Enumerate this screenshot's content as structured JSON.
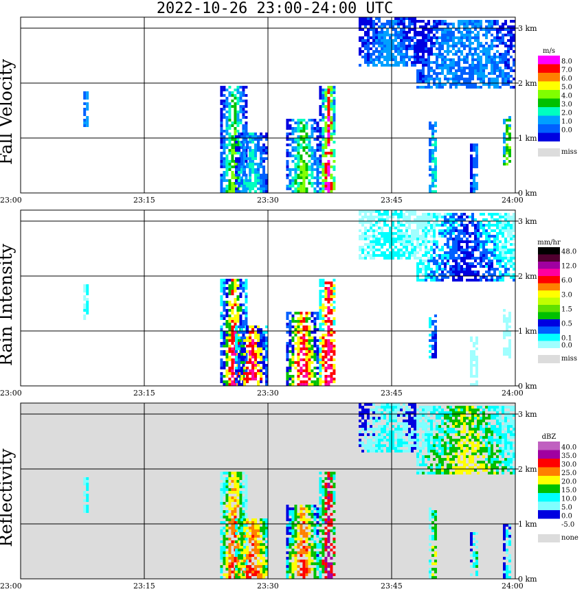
{
  "title": "2022-10-26   23:00-24:00 UTC",
  "chart_data": [
    {
      "type": "heatmap",
      "ylabel": "Fall Velocity",
      "unit": "m/s",
      "background": "#ffffff",
      "xticks": [
        "23:00",
        "23:15",
        "23:30",
        "23:45",
        "24:00"
      ],
      "yticks": [
        "0 km",
        "1 km",
        "2 km",
        "3 km"
      ],
      "xlim": [
        0,
        60
      ],
      "ylim_km": [
        0,
        3.2
      ],
      "grid": true,
      "legend": [
        {
          "label": "8.0",
          "color": "#ff00ff"
        },
        {
          "label": "7.0",
          "color": "#ff0000"
        },
        {
          "label": "6.0",
          "color": "#ff8000"
        },
        {
          "label": "5.0",
          "color": "#ffff00"
        },
        {
          "label": "4.0",
          "color": "#80ff00"
        },
        {
          "label": "3.0",
          "color": "#00c000"
        },
        {
          "label": "2.0",
          "color": "#00ffc0"
        },
        {
          "label": "1.0",
          "color": "#00a0ff"
        },
        {
          "label": "0.0",
          "color": "#0060ff"
        },
        {
          "label": "",
          "color": "#0000e0"
        }
      ],
      "missing_label": "miss",
      "cells_note_palette": [
        "#0000e0",
        "#0060ff",
        "#00a0ff",
        "#00ffc0",
        "#00c000",
        "#80ff00",
        "#ff0000",
        "#ff00ff"
      ],
      "echoes": [
        {
          "t0": 7.6,
          "t1": 8.2,
          "h0": 1.2,
          "h1": 1.85,
          "c": [
            1,
            2
          ]
        },
        {
          "t0": 24.2,
          "t1": 27.2,
          "h0": 0.0,
          "h1": 1.95,
          "c": [
            0,
            1,
            2,
            3,
            4,
            5
          ]
        },
        {
          "t0": 26.0,
          "t1": 29.8,
          "h0": 0.0,
          "h1": 1.1,
          "c": [
            0,
            1,
            2,
            3
          ]
        },
        {
          "t0": 32.2,
          "t1": 36.0,
          "h0": 0.0,
          "h1": 1.35,
          "c": [
            0,
            1,
            2,
            3,
            4,
            5
          ]
        },
        {
          "t0": 36.2,
          "t1": 38.2,
          "h0": 0.0,
          "h1": 1.95,
          "c": [
            0,
            1,
            3,
            5,
            6,
            7
          ]
        },
        {
          "t0": 41.0,
          "t1": 48.0,
          "h0": 2.3,
          "h1": 3.15,
          "c": [
            0,
            1,
            2
          ]
        },
        {
          "t0": 48.0,
          "t1": 60.0,
          "h0": 1.9,
          "h1": 3.1,
          "c": [
            0,
            1,
            2,
            1
          ]
        },
        {
          "t0": 49.5,
          "t1": 50.5,
          "h0": 0.0,
          "h1": 1.3,
          "c": [
            1,
            2,
            3
          ]
        },
        {
          "t0": 54.5,
          "t1": 55.5,
          "h0": 0.0,
          "h1": 0.9,
          "c": [
            0,
            1,
            2
          ]
        },
        {
          "t0": 58.5,
          "t1": 59.5,
          "h0": 0.5,
          "h1": 1.4,
          "c": [
            2,
            4,
            5
          ]
        }
      ]
    },
    {
      "type": "heatmap",
      "ylabel": "Rain Intensity",
      "unit": "mm/hr",
      "background": "#ffffff",
      "xticks": [
        "23:00",
        "23:15",
        "23:30",
        "23:45",
        "24:00"
      ],
      "yticks": [
        "0 km",
        "1 km",
        "2 km",
        "3 km"
      ],
      "xlim": [
        0,
        60
      ],
      "ylim_km": [
        0,
        3.2
      ],
      "grid": true,
      "legend": [
        {
          "label": "48.0",
          "color": "#000000"
        },
        {
          "label": "",
          "color": "#500030"
        },
        {
          "label": "12.0",
          "color": "#a000a0"
        },
        {
          "label": "",
          "color": "#ff00a0"
        },
        {
          "label": "6.0",
          "color": "#ff0000"
        },
        {
          "label": "",
          "color": "#ff8000"
        },
        {
          "label": "3.0",
          "color": "#ffff00"
        },
        {
          "label": "",
          "color": "#c0ff00"
        },
        {
          "label": "1.5",
          "color": "#60e000"
        },
        {
          "label": "",
          "color": "#00c000"
        },
        {
          "label": "0.5",
          "color": "#0000e0"
        },
        {
          "label": "",
          "color": "#0060ff"
        },
        {
          "label": "0.1",
          "color": "#00ffff"
        },
        {
          "label": "0.0",
          "color": "#a0ffff"
        }
      ],
      "missing_label": "miss",
      "cells_note_palette": [
        "#a0ffff",
        "#00ffff",
        "#0060ff",
        "#0000e0",
        "#00c000",
        "#ffff00",
        "#ff0000",
        "#ff00a0"
      ],
      "echoes": [
        {
          "t0": 7.6,
          "t1": 8.2,
          "h0": 1.2,
          "h1": 1.85,
          "c": [
            0,
            1
          ]
        },
        {
          "t0": 24.2,
          "t1": 27.2,
          "h0": 0.0,
          "h1": 1.95,
          "c": [
            1,
            2,
            3,
            4,
            5,
            6,
            7
          ]
        },
        {
          "t0": 26.0,
          "t1": 29.8,
          "h0": 0.0,
          "h1": 1.1,
          "c": [
            1,
            2,
            3,
            5,
            6,
            7
          ]
        },
        {
          "t0": 32.2,
          "t1": 36.0,
          "h0": 0.0,
          "h1": 1.35,
          "c": [
            2,
            3,
            4,
            5,
            6,
            7
          ]
        },
        {
          "t0": 36.2,
          "t1": 38.2,
          "h0": 0.0,
          "h1": 1.95,
          "c": [
            1,
            5,
            6,
            7
          ]
        },
        {
          "t0": 41.0,
          "t1": 48.0,
          "h0": 2.3,
          "h1": 3.15,
          "c": [
            0,
            1
          ]
        },
        {
          "t0": 48.0,
          "t1": 60.0,
          "h0": 1.9,
          "h1": 3.1,
          "c": [
            0,
            1,
            2,
            3
          ]
        },
        {
          "t0": 49.5,
          "t1": 50.5,
          "h0": 0.5,
          "h1": 1.3,
          "c": [
            1,
            2,
            3
          ]
        },
        {
          "t0": 54.5,
          "t1": 55.5,
          "h0": 0.0,
          "h1": 0.9,
          "c": [
            0
          ]
        },
        {
          "t0": 58.5,
          "t1": 59.5,
          "h0": 0.5,
          "h1": 1.4,
          "c": [
            0
          ]
        }
      ]
    },
    {
      "type": "heatmap",
      "ylabel": "Reflectivity",
      "unit": "dBZ",
      "background": "#dcdcdc",
      "xticks": [
        "23:00",
        "23:15",
        "23:30",
        "23:45",
        "24:00"
      ],
      "yticks": [
        "0 km",
        "1 km",
        "2 km",
        "3 km"
      ],
      "xlim": [
        0,
        60
      ],
      "ylim_km": [
        0,
        3.2
      ],
      "grid": true,
      "legend": [
        {
          "label": "40.0",
          "color": "#c060c0"
        },
        {
          "label": "35.0",
          "color": "#a000a0"
        },
        {
          "label": "30.0",
          "color": "#ff0000"
        },
        {
          "label": "25.0",
          "color": "#ff8000"
        },
        {
          "label": "20.0",
          "color": "#ffff00"
        },
        {
          "label": "15.0",
          "color": "#00c000"
        },
        {
          "label": "10.0",
          "color": "#00ffff"
        },
        {
          "label": "5.0",
          "color": "#80ffff"
        },
        {
          "label": "0.0",
          "color": "#0000e0"
        },
        {
          "label": "-5.0",
          "color": "#ffffff"
        }
      ],
      "missing_label": "none",
      "cells_note_palette": [
        "#0000e0",
        "#80ffff",
        "#00ffff",
        "#00c000",
        "#ffff00",
        "#ff8000",
        "#ff0000",
        "#a000a0"
      ],
      "echoes": [
        {
          "t0": 7.6,
          "t1": 8.2,
          "h0": 1.2,
          "h1": 1.85,
          "c": [
            1,
            2
          ]
        },
        {
          "t0": 24.2,
          "t1": 27.2,
          "h0": 0.0,
          "h1": 1.95,
          "c": [
            1,
            2,
            3,
            4,
            5,
            6
          ]
        },
        {
          "t0": 26.0,
          "t1": 29.8,
          "h0": 0.0,
          "h1": 1.1,
          "c": [
            2,
            3,
            4,
            5,
            6
          ]
        },
        {
          "t0": 32.2,
          "t1": 36.0,
          "h0": 0.0,
          "h1": 1.35,
          "c": [
            0,
            2,
            3,
            4,
            5,
            6
          ]
        },
        {
          "t0": 36.2,
          "t1": 38.2,
          "h0": 0.0,
          "h1": 1.95,
          "c": [
            2,
            3,
            6,
            7
          ]
        },
        {
          "t0": 41.0,
          "t1": 48.0,
          "h0": 2.3,
          "h1": 3.15,
          "c": [
            0,
            1,
            2
          ]
        },
        {
          "t0": 48.0,
          "t1": 60.0,
          "h0": 1.9,
          "h1": 3.1,
          "c": [
            1,
            2,
            3,
            4
          ]
        },
        {
          "t0": 49.5,
          "t1": 50.5,
          "h0": 0.0,
          "h1": 1.3,
          "c": [
            1,
            2,
            3,
            4
          ]
        },
        {
          "t0": 54.5,
          "t1": 55.5,
          "h0": 0.0,
          "h1": 0.9,
          "c": [
            0,
            1,
            2,
            3
          ]
        },
        {
          "t0": 58.5,
          "t1": 59.5,
          "h0": 0.0,
          "h1": 1.0,
          "c": [
            0,
            1,
            2
          ]
        }
      ]
    }
  ]
}
